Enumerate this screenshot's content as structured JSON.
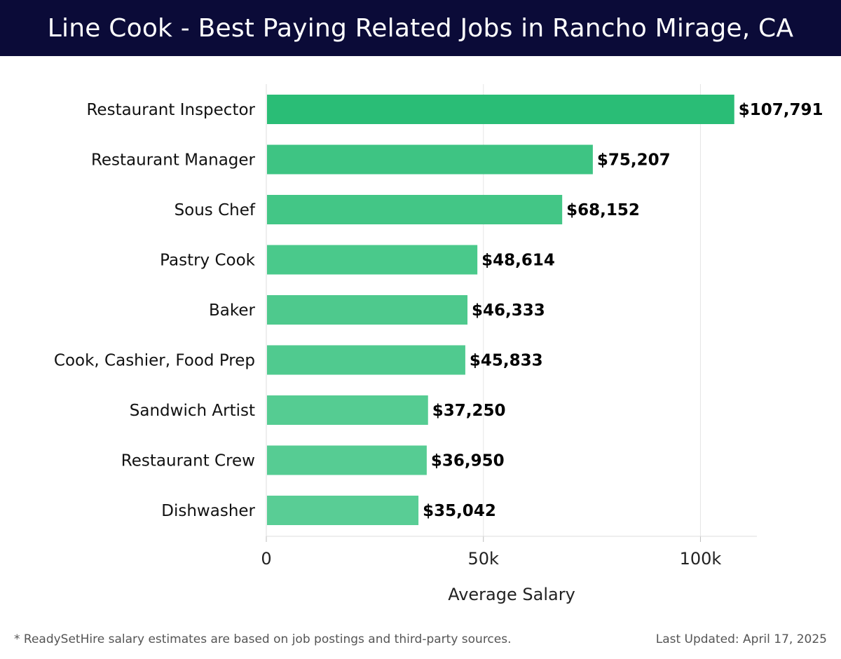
{
  "header": {
    "title": "Line Cook - Best Paying Related Jobs in Rancho Mirage, CA"
  },
  "chart_data": {
    "type": "bar",
    "orientation": "horizontal",
    "categories": [
      "Restaurant Inspector",
      "Restaurant Manager",
      "Sous Chef",
      "Pastry Cook",
      "Baker",
      "Cook, Cashier, Food Prep",
      "Sandwich Artist",
      "Restaurant Crew",
      "Dishwasher"
    ],
    "values": [
      107791,
      75207,
      68152,
      48614,
      46333,
      45833,
      37250,
      36950,
      35042
    ],
    "value_labels": [
      "$107,791",
      "$75,207",
      "$68,152",
      "$48,614",
      "$46,333",
      "$45,833",
      "$37,250",
      "$36,950",
      "$35,042"
    ],
    "xlabel": "Average Salary",
    "ylabel": "",
    "xlim": [
      0,
      113000
    ],
    "xticks": [
      {
        "value": 0,
        "label": "0"
      },
      {
        "value": 50000,
        "label": "50k"
      },
      {
        "value": 100000,
        "label": "100k"
      }
    ],
    "grid": true,
    "bar_colors": [
      "#2abd76",
      "#3ec483",
      "#43c686",
      "#4ac98b",
      "#4ec98d",
      "#50ca8f",
      "#55cc92",
      "#56cc93",
      "#59cd95"
    ]
  },
  "footer": {
    "note": "* ReadySetHire salary estimates are based on job postings and third-party sources.",
    "updated": "Last Updated: April 17, 2025"
  }
}
